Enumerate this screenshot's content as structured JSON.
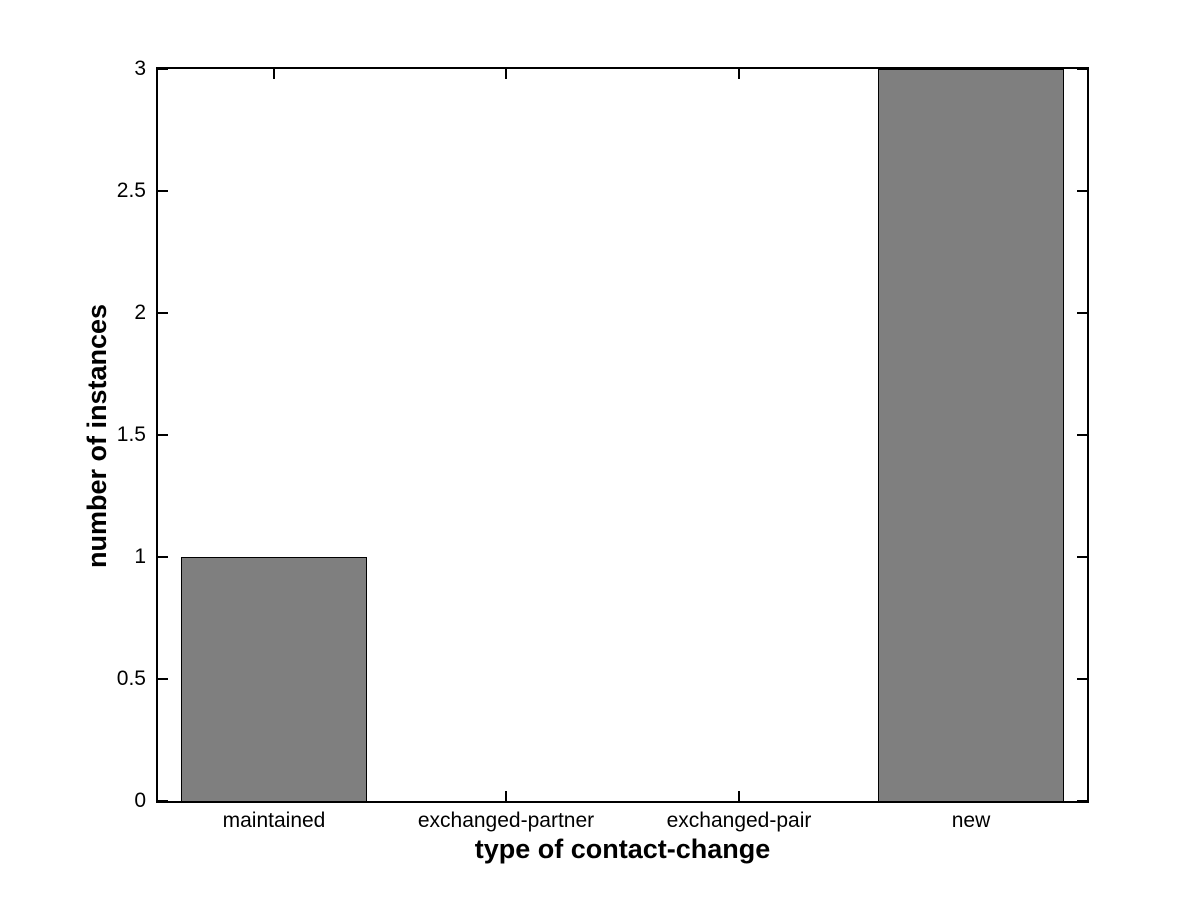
{
  "chart_data": {
    "type": "bar",
    "title": "",
    "xlabel": "type of contact-change",
    "ylabel": "number of instances",
    "categories": [
      "maintained",
      "exchanged-partner",
      "exchanged-pair",
      "new"
    ],
    "values": [
      1,
      0,
      0,
      3
    ],
    "ylim": [
      0,
      3
    ],
    "yticks": [
      0,
      0.5,
      1,
      1.5,
      2,
      2.5,
      3
    ],
    "ytick_labels": [
      "0",
      "0.5",
      "1",
      "1.5",
      "2",
      "2.5",
      "3"
    ],
    "bar_width_fraction": 0.8,
    "bar_color": "#7f7f7f",
    "bar_edge_color": "#000000",
    "axis_color": "#000000",
    "background_color": "#ffffff",
    "grid": false,
    "legend": "none",
    "tick_direction": "in"
  }
}
